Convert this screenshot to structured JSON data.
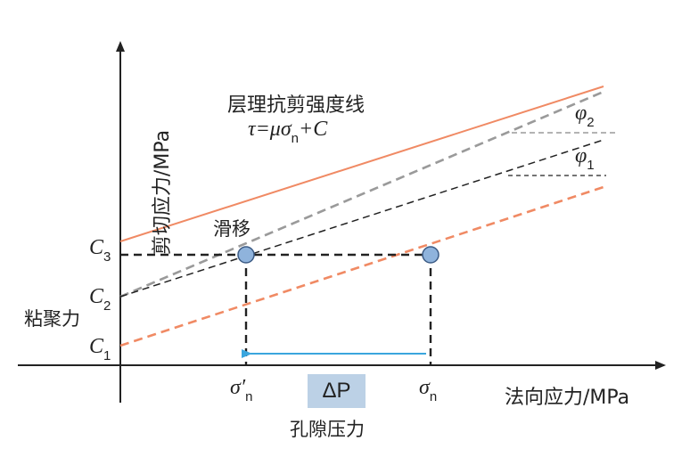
{
  "axes": {
    "y_label": "剪切应力/MPa",
    "x_label": "法向应力/MPa"
  },
  "strength_line": {
    "title": "层理抗剪强度线",
    "formula": "τ=μσ",
    "formula_sub": "n",
    "formula_tail": "+C"
  },
  "slip_label": "滑移",
  "cohesion_label": "粘聚力",
  "pore_pressure_label": "孔隙压力",
  "delta_p": "ΔP",
  "c_labels": [
    {
      "name": "C",
      "sub": "3"
    },
    {
      "name": "C",
      "sub": "2"
    },
    {
      "name": "C",
      "sub": "1"
    }
  ],
  "angles": [
    {
      "name": "φ",
      "sub": "2"
    },
    {
      "name": "φ",
      "sub": "1"
    }
  ],
  "x_ticks": [
    {
      "name": "σ′",
      "sub": "n"
    },
    {
      "name": "σ",
      "sub": "n"
    }
  ],
  "colors": {
    "orange": "#f08a64",
    "gray": "#9a9a9a",
    "dark": "#222222",
    "arrow_blue": "#3aa6de",
    "point_fill": "#8fb3dc",
    "point_stroke": "#3c5b85",
    "delta_bg": "#bcd1e6"
  }
}
